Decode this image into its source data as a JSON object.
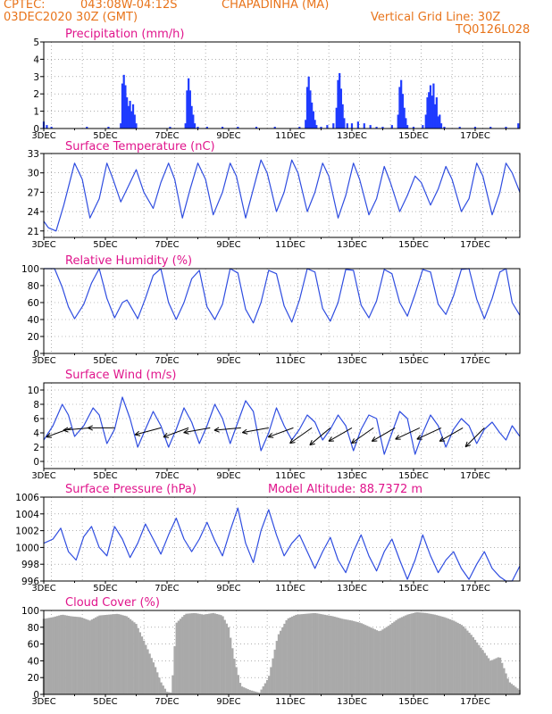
{
  "colors": {
    "header": "#e8741b",
    "panel_title": "#e0158c",
    "series_line": "#2f4de0",
    "precip_bar": "#1f3bff",
    "cloud_bar": "#a9a9a9",
    "grid": "#808080",
    "arrow": "#000000"
  },
  "header": {
    "center_name": "CPTEC:",
    "coords": "043:08W-04:12S",
    "location": "CHAPADINHA (MA)",
    "date": "03DEC2020 30Z (GMT)",
    "grid_note": "Vertical Grid Line: 30Z",
    "model_code": "TQ0126L028"
  },
  "x_axis": {
    "range_days": [
      3.0,
      18.45
    ],
    "tick_labels": [
      "3DEC",
      "5DEC",
      "7DEC",
      "9DEC",
      "11DEC",
      "13DEC",
      "15DEC",
      "17DEC"
    ],
    "tick_days": [
      3,
      5,
      7,
      9,
      11,
      13,
      15,
      17
    ],
    "vertical_grid_days": [
      3.25,
      4.25,
      5.25,
      6.25,
      7.25,
      8.25,
      9.25,
      10.25,
      11.25,
      12.25,
      13.25,
      14.25,
      15.25,
      16.25,
      17.25
    ]
  },
  "chart_data": [
    {
      "id": "precip",
      "type": "bar",
      "title": "Precipitation (mm/h)",
      "ylim": [
        0,
        5
      ],
      "yticks": [
        "0",
        "1",
        "2",
        "3",
        "4",
        "5"
      ],
      "grid": true,
      "x_days": [
        3.0,
        3.1,
        3.25,
        4.4,
        5.1,
        5.5,
        5.55,
        5.6,
        5.65,
        5.7,
        5.75,
        5.8,
        5.85,
        5.9,
        5.95,
        6.0,
        7.1,
        7.6,
        7.65,
        7.7,
        7.75,
        7.8,
        7.85,
        7.9,
        8.0,
        8.3,
        8.8,
        9.3,
        9.9,
        10.5,
        11.3,
        11.5,
        11.55,
        11.6,
        11.65,
        11.7,
        11.75,
        11.8,
        11.85,
        12.0,
        12.2,
        12.4,
        12.5,
        12.55,
        12.6,
        12.65,
        12.7,
        12.75,
        12.85,
        13.0,
        13.2,
        13.4,
        13.6,
        13.8,
        14.0,
        14.3,
        14.5,
        14.55,
        14.6,
        14.65,
        14.7,
        14.75,
        14.8,
        15.0,
        15.3,
        15.4,
        15.45,
        15.5,
        15.55,
        15.6,
        15.65,
        15.7,
        15.75,
        15.8,
        15.85,
        15.9,
        16.0,
        16.5,
        17.0,
        17.5,
        18.0,
        18.4
      ],
      "values": [
        0.4,
        0.2,
        0.1,
        0.1,
        0.1,
        0.3,
        2.6,
        3.1,
        2.5,
        1.8,
        1.3,
        1.6,
        1.0,
        1.4,
        0.8,
        0.3,
        0.1,
        0.3,
        2.2,
        2.9,
        2.2,
        1.3,
        0.8,
        0.3,
        0.1,
        0.1,
        0.1,
        0.1,
        0.1,
        0.1,
        0.1,
        0.5,
        2.4,
        3.0,
        2.2,
        1.5,
        1.0,
        0.5,
        0.2,
        0.1,
        0.2,
        0.3,
        1.2,
        2.8,
        3.2,
        2.3,
        1.4,
        0.6,
        0.3,
        0.3,
        0.4,
        0.3,
        0.2,
        0.1,
        0.1,
        0.2,
        0.8,
        2.4,
        2.8,
        2.0,
        1.2,
        0.6,
        0.2,
        0.1,
        0.2,
        0.8,
        1.8,
        2.1,
        2.5,
        1.9,
        2.6,
        1.4,
        1.8,
        0.7,
        0.8,
        0.3,
        0.1,
        0.1,
        0.1,
        0.1,
        0.1,
        0.3
      ]
    },
    {
      "id": "temperature",
      "type": "line",
      "title": "Surface Temperature (nC)",
      "ylim": [
        20,
        33
      ],
      "yticks": [
        "21",
        "24",
        "27",
        "30",
        "33"
      ],
      "ytick_values": [
        21,
        24,
        27,
        30,
        33
      ],
      "grid": true,
      "x": [
        3.0,
        3.15,
        3.4,
        3.65,
        4.0,
        4.25,
        4.5,
        4.8,
        5.05,
        5.25,
        5.5,
        5.75,
        6.0,
        6.25,
        6.55,
        6.8,
        7.05,
        7.25,
        7.5,
        7.75,
        8.0,
        8.25,
        8.5,
        8.8,
        9.05,
        9.25,
        9.55,
        9.8,
        10.05,
        10.25,
        10.55,
        10.8,
        11.05,
        11.25,
        11.55,
        11.8,
        12.05,
        12.25,
        12.55,
        12.8,
        13.05,
        13.25,
        13.55,
        13.8,
        14.05,
        14.25,
        14.55,
        14.8,
        15.05,
        15.25,
        15.55,
        15.8,
        16.05,
        16.25,
        16.55,
        16.8,
        17.05,
        17.25,
        17.55,
        17.8,
        18.0,
        18.2,
        18.45
      ],
      "values": [
        22.5,
        21.5,
        21.0,
        25.0,
        31.5,
        29.0,
        23.0,
        26.0,
        31.5,
        29.0,
        25.5,
        28.0,
        30.5,
        27.0,
        24.5,
        28.5,
        31.5,
        29.0,
        23.0,
        27.5,
        31.5,
        29.0,
        23.5,
        27.0,
        31.5,
        29.5,
        23.0,
        27.5,
        32.0,
        30.0,
        24.0,
        27.0,
        32.0,
        30.0,
        24.0,
        27.0,
        31.5,
        29.5,
        23.0,
        26.5,
        31.5,
        29.0,
        23.5,
        26.0,
        31.0,
        28.5,
        24.0,
        26.5,
        29.5,
        28.5,
        25.0,
        27.5,
        31.0,
        29.0,
        24.0,
        26.0,
        31.5,
        29.5,
        23.5,
        27.0,
        31.5,
        30.0,
        27.0
      ]
    },
    {
      "id": "humidity",
      "type": "line",
      "title": "Relative Humidity (%)",
      "ylim": [
        0,
        100
      ],
      "yticks": [
        "0",
        "20",
        "40",
        "60",
        "80",
        "100"
      ],
      "ytick_values": [
        0,
        20,
        40,
        60,
        80,
        100
      ],
      "grid": true,
      "x": [
        3.0,
        3.1,
        3.35,
        3.6,
        3.8,
        4.0,
        4.3,
        4.55,
        4.8,
        5.05,
        5.3,
        5.55,
        5.7,
        5.8,
        6.05,
        6.3,
        6.55,
        6.8,
        7.05,
        7.3,
        7.55,
        7.8,
        8.05,
        8.3,
        8.55,
        8.8,
        9.05,
        9.3,
        9.55,
        9.8,
        10.05,
        10.3,
        10.55,
        10.8,
        11.05,
        11.3,
        11.55,
        11.8,
        12.05,
        12.3,
        12.55,
        12.8,
        13.05,
        13.3,
        13.55,
        13.8,
        14.05,
        14.3,
        14.55,
        14.8,
        15.05,
        15.3,
        15.55,
        15.8,
        16.05,
        16.3,
        16.55,
        16.8,
        17.05,
        17.3,
        17.55,
        17.8,
        18.0,
        18.2,
        18.45
      ],
      "values": [
        100,
        100,
        100,
        78,
        55,
        41,
        58,
        83,
        100,
        65,
        42,
        60,
        63,
        57,
        41,
        65,
        92,
        100,
        60,
        40,
        60,
        88,
        98,
        55,
        40,
        58,
        100,
        95,
        52,
        36,
        60,
        98,
        94,
        56,
        37,
        63,
        100,
        96,
        53,
        38,
        60,
        99,
        98,
        57,
        42,
        62,
        99,
        94,
        60,
        44,
        70,
        99,
        96,
        58,
        46,
        68,
        99,
        100,
        64,
        41,
        65,
        96,
        100,
        60,
        45
      ]
    },
    {
      "id": "wind",
      "type": "line",
      "title": "Surface Wind (m/s)",
      "ylim": [
        -1,
        11
      ],
      "yticks": [
        "0",
        "2",
        "4",
        "6",
        "8",
        "10"
      ],
      "ytick_values": [
        0,
        2,
        4,
        6,
        8,
        10
      ],
      "grid": true,
      "x": [
        3.0,
        3.3,
        3.6,
        3.8,
        4.0,
        4.3,
        4.6,
        4.8,
        5.05,
        5.3,
        5.55,
        5.8,
        6.05,
        6.3,
        6.55,
        6.8,
        7.05,
        7.3,
        7.55,
        7.8,
        8.05,
        8.3,
        8.55,
        8.8,
        9.05,
        9.3,
        9.55,
        9.8,
        10.05,
        10.3,
        10.55,
        10.8,
        11.05,
        11.3,
        11.55,
        11.8,
        12.05,
        12.3,
        12.55,
        12.8,
        13.05,
        13.3,
        13.55,
        13.8,
        14.05,
        14.3,
        14.55,
        14.8,
        15.05,
        15.3,
        15.55,
        15.8,
        16.05,
        16.3,
        16.55,
        16.8,
        17.05,
        17.3,
        17.55,
        17.8,
        18.0,
        18.2,
        18.45
      ],
      "values": [
        3.0,
        5.0,
        8.0,
        6.5,
        3.5,
        5.0,
        7.5,
        6.5,
        2.5,
        4.5,
        9.0,
        6.0,
        2.0,
        4.5,
        7.0,
        5.0,
        2.0,
        4.5,
        7.5,
        5.5,
        2.5,
        5.0,
        8.0,
        6.0,
        2.5,
        5.5,
        8.5,
        7.0,
        1.5,
        4.0,
        7.5,
        5.0,
        3.0,
        4.5,
        6.5,
        5.5,
        3.0,
        4.5,
        6.5,
        5.0,
        1.5,
        4.5,
        6.5,
        6.0,
        1.0,
        4.0,
        7.0,
        6.0,
        1.0,
        4.0,
        6.5,
        5.0,
        2.0,
        4.5,
        6.0,
        5.0,
        2.5,
        4.5,
        5.5,
        4.0,
        3.0,
        5.0,
        3.5
      ],
      "arrows_x": [
        3.9,
        4.5,
        5.3,
        6.8,
        7.7,
        8.4,
        9.4,
        10.3,
        11.1,
        11.7,
        12.3,
        13.0,
        13.7,
        14.4,
        15.2,
        15.9,
        16.6,
        17.3
      ],
      "arrows_angle_deg": [
        200,
        185,
        180,
        195,
        200,
        190,
        185,
        190,
        200,
        215,
        220,
        210,
        215,
        210,
        205,
        205,
        210,
        225
      ]
    },
    {
      "id": "pressure",
      "type": "line",
      "title": "Surface Pressure (hPa)",
      "annotation": "Model Altitude: 88.7372 m",
      "ylim": [
        996,
        1006
      ],
      "yticks": [
        "996",
        "998",
        "1000",
        "1002",
        "1004",
        "1006"
      ],
      "ytick_values": [
        996,
        998,
        1000,
        1002,
        1004,
        1006
      ],
      "grid": true,
      "x": [
        3.0,
        3.3,
        3.55,
        3.8,
        4.05,
        4.3,
        4.55,
        4.8,
        5.05,
        5.3,
        5.55,
        5.8,
        6.05,
        6.3,
        6.55,
        6.8,
        7.05,
        7.3,
        7.55,
        7.8,
        8.05,
        8.3,
        8.55,
        8.8,
        9.05,
        9.3,
        9.55,
        9.8,
        10.05,
        10.3,
        10.55,
        10.8,
        11.05,
        11.3,
        11.55,
        11.8,
        12.05,
        12.3,
        12.55,
        12.8,
        13.05,
        13.3,
        13.55,
        13.8,
        14.05,
        14.3,
        14.55,
        14.8,
        15.05,
        15.3,
        15.55,
        15.8,
        16.05,
        16.3,
        16.55,
        16.8,
        17.05,
        17.3,
        17.55,
        17.8,
        18.0,
        18.2,
        18.45
      ],
      "values": [
        1000.5,
        1001.0,
        1002.3,
        999.5,
        998.5,
        1001.3,
        1002.5,
        1000.0,
        999.0,
        1002.5,
        1001.0,
        998.8,
        1000.5,
        1002.8,
        1001.0,
        999.2,
        1001.5,
        1003.5,
        1001.0,
        999.5,
        1001.0,
        1003.0,
        1000.8,
        999.0,
        1002.0,
        1004.7,
        1000.5,
        998.2,
        1002.0,
        1004.5,
        1001.5,
        999.0,
        1000.5,
        1001.5,
        999.5,
        997.5,
        999.5,
        1001.2,
        998.5,
        997.0,
        999.5,
        1001.5,
        999.0,
        997.2,
        999.5,
        1001.0,
        998.5,
        996.2,
        998.5,
        1001.5,
        999.0,
        997.0,
        998.5,
        999.5,
        997.5,
        996.2,
        998.0,
        999.5,
        997.5,
        996.5,
        996.0,
        996.0,
        997.8
      ]
    },
    {
      "id": "cloud",
      "type": "area",
      "title": "Cloud Cover (%)",
      "ylim": [
        0,
        100
      ],
      "yticks": [
        "0",
        "20",
        "40",
        "60",
        "80",
        "100"
      ],
      "ytick_values": [
        0,
        20,
        40,
        60,
        80,
        100
      ],
      "grid": true,
      "x": [
        3.0,
        3.3,
        3.6,
        3.9,
        4.2,
        4.5,
        4.8,
        5.1,
        5.4,
        5.7,
        6.0,
        6.3,
        6.6,
        6.8,
        7.0,
        7.15,
        7.3,
        7.6,
        7.9,
        8.2,
        8.5,
        8.8,
        9.0,
        9.2,
        9.4,
        9.7,
        10.0,
        10.3,
        10.6,
        10.9,
        11.2,
        11.5,
        11.8,
        12.1,
        12.4,
        12.7,
        13.0,
        13.3,
        13.6,
        13.9,
        14.2,
        14.5,
        14.8,
        15.1,
        15.4,
        15.7,
        16.0,
        16.3,
        16.6,
        16.9,
        17.2,
        17.5,
        17.8,
        18.1,
        18.45
      ],
      "values": [
        90,
        92,
        95,
        93,
        92,
        88,
        94,
        95,
        96,
        93,
        84,
        60,
        35,
        15,
        3,
        2,
        85,
        96,
        97,
        95,
        97,
        94,
        80,
        40,
        10,
        5,
        2,
        20,
        70,
        90,
        95,
        96,
        97,
        95,
        93,
        90,
        88,
        85,
        80,
        75,
        82,
        90,
        95,
        98,
        97,
        95,
        92,
        88,
        82,
        70,
        55,
        40,
        45,
        15,
        5
      ]
    }
  ]
}
